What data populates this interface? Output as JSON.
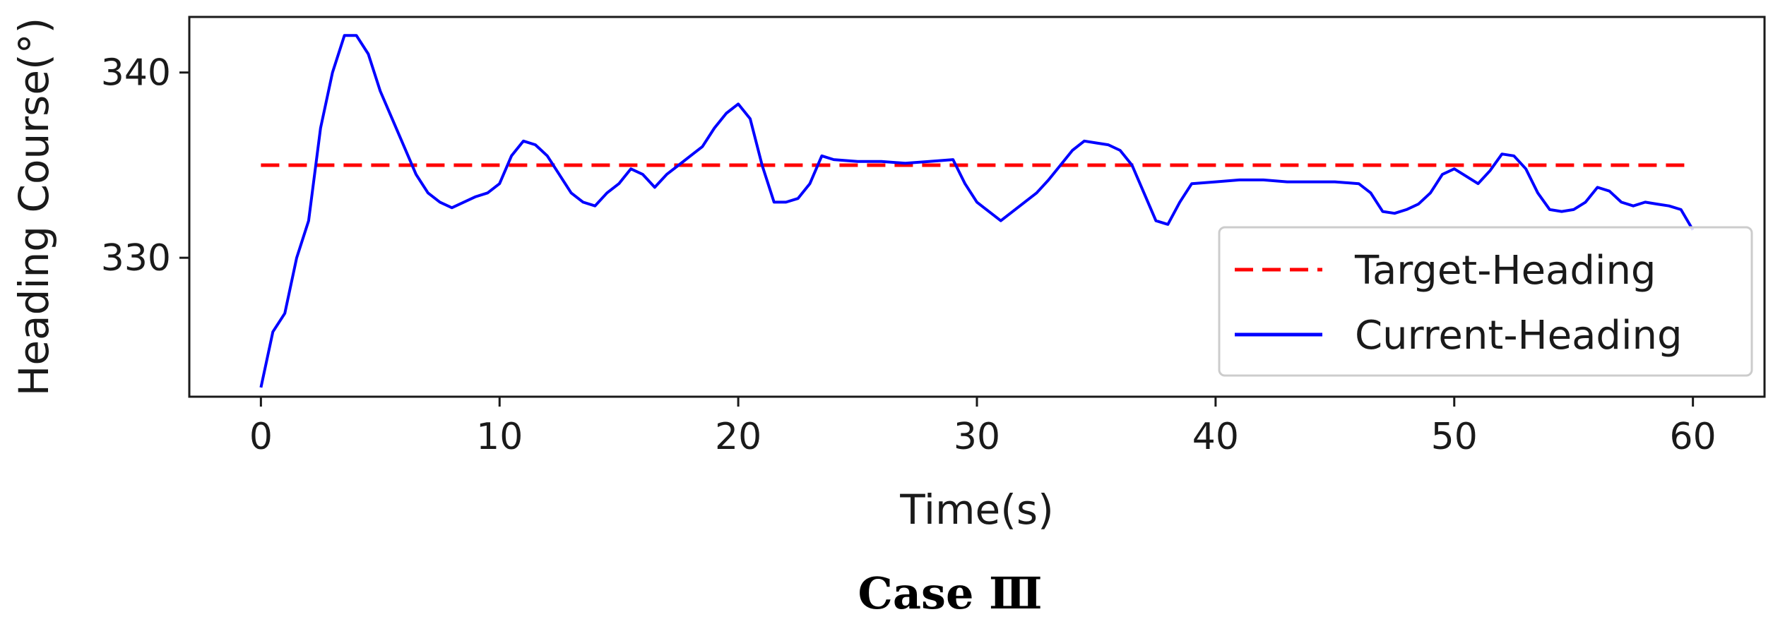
{
  "chart_data": {
    "type": "line",
    "title": "",
    "caption": "Case Ⅲ",
    "xlabel": "Time(s)",
    "ylabel": "Heading Course(°)",
    "xlim": [
      -3,
      63
    ],
    "ylim": [
      322.5,
      343
    ],
    "xticks": [
      0,
      10,
      20,
      30,
      40,
      50,
      60
    ],
    "yticks": [
      330,
      340
    ],
    "grid": false,
    "legend_position": "lower-right",
    "series": [
      {
        "name": "Target-Heading",
        "style": "dashed",
        "color": "#ff0000",
        "x": [
          0,
          60
        ],
        "y": [
          335,
          335
        ]
      },
      {
        "name": "Current-Heading",
        "style": "solid",
        "color": "#0000ff",
        "x": [
          0,
          0.5,
          1,
          1.5,
          2,
          2.5,
          3,
          3.5,
          4,
          4.5,
          5,
          5.5,
          6,
          6.5,
          7,
          7.5,
          8,
          8.5,
          9,
          9.5,
          10,
          10.5,
          11,
          11.5,
          12,
          12.5,
          13,
          13.5,
          14,
          14.5,
          15,
          15.5,
          16,
          16.5,
          17,
          17.5,
          18,
          18.5,
          19,
          19.5,
          20,
          20.5,
          21,
          21.5,
          22,
          22.5,
          23,
          23.5,
          24,
          25,
          26,
          27,
          28,
          29,
          29.5,
          30,
          30.5,
          31,
          31.5,
          32,
          32.5,
          33,
          33.5,
          34,
          34.5,
          35,
          35.5,
          36,
          36.5,
          37,
          37.5,
          38,
          38.5,
          39,
          40,
          41,
          42,
          43,
          44,
          45,
          46,
          46.5,
          47,
          47.5,
          48,
          48.5,
          49,
          49.5,
          50,
          50.5,
          51,
          51.5,
          52,
          52.5,
          53,
          53.5,
          54,
          54.5,
          55,
          55.5,
          56,
          56.5,
          57,
          57.5,
          58,
          58.5,
          59,
          59.5,
          60
        ],
        "y": [
          323,
          326,
          327,
          330,
          332,
          337,
          340,
          342,
          342,
          341,
          339,
          337.5,
          336,
          334.5,
          333.5,
          333,
          332.7,
          333,
          333.3,
          333.5,
          334,
          335.5,
          336.3,
          336.1,
          335.5,
          334.5,
          333.5,
          333,
          332.8,
          333.5,
          334,
          334.8,
          334.5,
          333.8,
          334.5,
          335,
          335.5,
          336,
          337,
          337.8,
          338.3,
          337.5,
          335,
          333,
          333,
          333.2,
          334,
          335.5,
          335.3,
          335.2,
          335.2,
          335.1,
          335.2,
          335.3,
          334,
          333,
          332.5,
          332,
          332.5,
          333,
          333.5,
          334.2,
          335,
          335.8,
          336.3,
          336.2,
          336.1,
          335.8,
          335,
          333.5,
          332,
          331.8,
          333,
          334,
          334.1,
          334.2,
          334.2,
          334.1,
          334.1,
          334.1,
          334,
          333.5,
          332.5,
          332.4,
          332.6,
          332.9,
          333.5,
          334.5,
          334.8,
          334.4,
          334,
          334.7,
          335.6,
          335.5,
          334.8,
          333.5,
          332.6,
          332.5,
          332.6,
          333,
          333.8,
          333.6,
          333,
          332.8,
          333,
          332.9,
          332.8,
          332.6,
          331.5
        ]
      }
    ]
  }
}
